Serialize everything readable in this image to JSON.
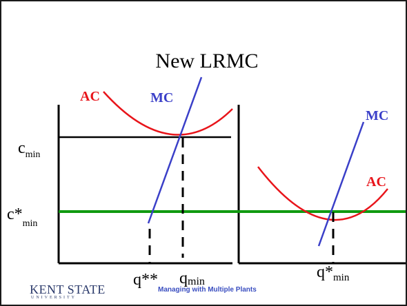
{
  "title": "New LRMC",
  "left_panel": {
    "ac_label": "AC",
    "mc_label": "MC",
    "cmin_base": "c",
    "cmin_sub": "min",
    "cstar_base": "c*",
    "cstar_sub": "min",
    "qstarstar_label": "q**",
    "qmin_base": "q",
    "qmin_sub": "min"
  },
  "right_panel": {
    "mc_label": "MC",
    "ac_label": "AC",
    "qstar_base": "q*",
    "qstar_sub": "min"
  },
  "footer": {
    "logo_main": "KENT STATE",
    "logo_sub": "UNIVERSITY",
    "text": "Managing with Multiple Plants"
  },
  "colors": {
    "ac_curve": "#e8141a",
    "mc_curve": "#3a3fc8",
    "lrmc_line": "#109a10",
    "axes": "#000000"
  }
}
